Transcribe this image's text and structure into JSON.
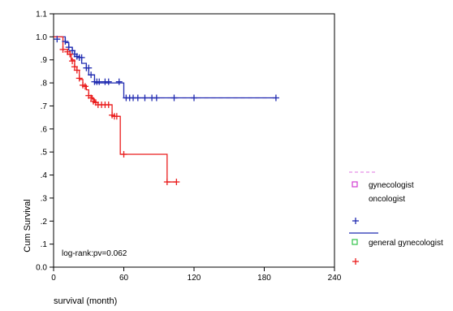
{
  "chart_data": {
    "type": "line",
    "chart_subtype": "kaplan-meier survival curve",
    "xlabel": "survival (month)",
    "ylabel": "Cum Survival",
    "xlim": [
      0,
      240
    ],
    "ylim": [
      0.0,
      1.1
    ],
    "x_ticks": [
      0,
      60,
      120,
      180,
      240
    ],
    "x_tick_labels": [
      "0",
      "60",
      "120",
      "180",
      "240"
    ],
    "y_ticks": [
      0.0,
      0.1,
      0.2,
      0.3,
      0.4,
      0.5,
      0.6,
      0.7,
      0.8,
      0.9,
      1.0,
      1.1
    ],
    "y_tick_labels": [
      "0.0",
      ".1",
      ".2",
      ".3",
      ".4",
      ".5",
      ".6",
      ".7",
      ".8",
      ".9",
      "1.0",
      "1.1"
    ],
    "grid": false,
    "legend_position": "right",
    "annotation": "log-rank:pv=0.062",
    "legend_labels": [
      "gynecologist",
      "oncologist",
      "general gynecologist"
    ],
    "series": [
      {
        "color": "#1f2ab0",
        "censor_color": "#1f2ab0",
        "step_x": [
          0,
          10,
          13,
          16,
          18,
          20,
          24,
          28,
          30,
          35,
          60,
          190
        ],
        "step_y": [
          1.0,
          0.975,
          0.955,
          0.94,
          0.925,
          0.91,
          0.885,
          0.865,
          0.835,
          0.8,
          0.735,
          0.735
        ],
        "censored_x": [
          3,
          10,
          13,
          16,
          18,
          20,
          22,
          24,
          28,
          30,
          32,
          35,
          37,
          39,
          44,
          47,
          56,
          62,
          65,
          68,
          72,
          78,
          84,
          88,
          103,
          120,
          190
        ],
        "censored_y": [
          0.99,
          0.98,
          0.955,
          0.94,
          0.925,
          0.915,
          0.91,
          0.91,
          0.865,
          0.865,
          0.835,
          0.805,
          0.805,
          0.805,
          0.805,
          0.805,
          0.805,
          0.735,
          0.735,
          0.735,
          0.735,
          0.735,
          0.735,
          0.735,
          0.735,
          0.735,
          0.735
        ]
      },
      {
        "color": "#ea1d1d",
        "censor_color": "#ea1d1d",
        "step_x": [
          0,
          8,
          12,
          15,
          18,
          20,
          22,
          25,
          28,
          30,
          33,
          35,
          38,
          40,
          50,
          52,
          57,
          97,
          105
        ],
        "step_y": [
          1.0,
          0.945,
          0.925,
          0.9,
          0.87,
          0.855,
          0.815,
          0.79,
          0.77,
          0.745,
          0.73,
          0.715,
          0.705,
          0.705,
          0.655,
          0.655,
          0.49,
          0.37,
          0.37
        ],
        "censored_x": [
          8,
          12,
          14,
          16,
          18,
          20,
          22,
          25,
          27,
          30,
          32,
          34,
          36,
          38,
          41,
          44,
          47,
          50,
          52,
          54,
          60,
          97,
          105
        ],
        "censored_y": [
          0.945,
          0.935,
          0.925,
          0.895,
          0.87,
          0.855,
          0.82,
          0.79,
          0.785,
          0.745,
          0.735,
          0.72,
          0.715,
          0.705,
          0.705,
          0.705,
          0.705,
          0.66,
          0.655,
          0.655,
          0.49,
          0.37,
          0.37
        ]
      }
    ],
    "legend_items": [
      {
        "type": "dashed-line",
        "color": "#e58fe6"
      },
      {
        "type": "square",
        "color": "#d33cd3"
      },
      {
        "type": "plus",
        "color": "#1f2ab0"
      },
      {
        "type": "solid-line",
        "color": "#1f2ab0"
      },
      {
        "type": "square",
        "color": "#31c34a"
      },
      {
        "type": "plus",
        "color": "#ea1d1d"
      }
    ],
    "pink_dashed_segment_x": [
      60,
      190
    ],
    "pink_dashed_segment_y": 0.735
  }
}
